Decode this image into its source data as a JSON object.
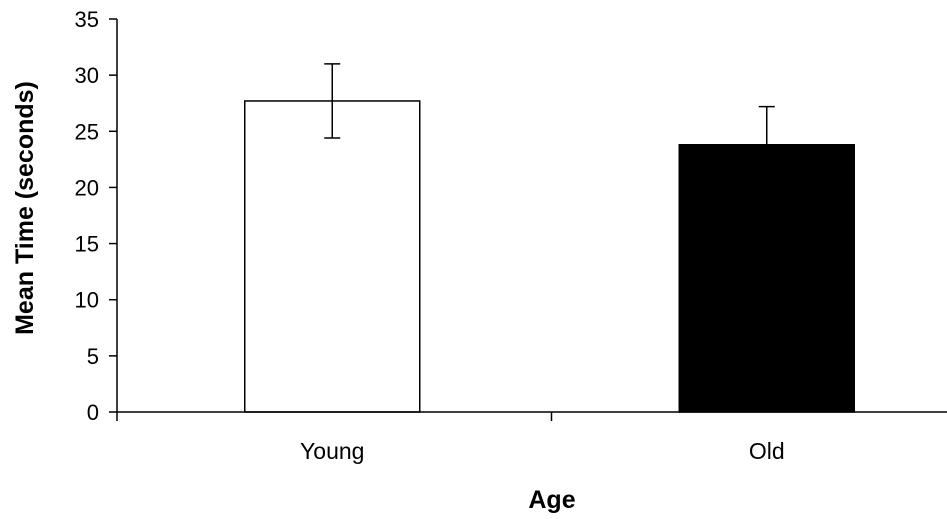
{
  "chart_data": {
    "type": "bar",
    "categories": [
      "Young",
      "Old"
    ],
    "values": [
      27.7,
      23.8
    ],
    "error": [
      3.3,
      3.4
    ],
    "bar_colors": [
      "#ffffff",
      "#000000"
    ],
    "xlabel": "Age",
    "ylabel": "Mean Time (seconds)",
    "ylim": [
      0,
      35
    ],
    "yticks": [
      "0",
      "5",
      "10",
      "15",
      "20",
      "25",
      "30",
      "35"
    ],
    "grid": false,
    "legend": "none"
  }
}
